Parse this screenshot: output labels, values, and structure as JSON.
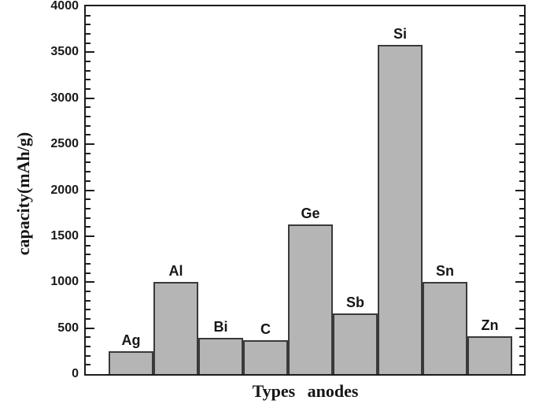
{
  "figure": {
    "background": "#ffffff",
    "bar_fill": "#b5b5b5",
    "bar_border": "#3a3a3a",
    "axis_color": "#1c1c1c",
    "text_color": "#161616"
  },
  "chart_data": {
    "type": "bar",
    "title": "",
    "xlabel": "Types anodes",
    "ylabel": "capacity(mAh/g)",
    "categories": [
      "Ag",
      "Al",
      "Bi",
      "C",
      "Ge",
      "Sb",
      "Si",
      "Sn",
      "Zn"
    ],
    "values": [
      250,
      1000,
      390,
      370,
      1625,
      660,
      3580,
      1000,
      410
    ],
    "ylim": [
      0,
      4000
    ],
    "ytick_major_interval": 500,
    "ytick_minor_interval": 100,
    "ytick_labels": [
      "0",
      "500",
      "1000",
      "1500",
      "2000",
      "2500",
      "3000",
      "3500",
      "4000"
    ],
    "grid": false,
    "legend": null,
    "bar_value_labels": "category names shown above each bar",
    "ticks": "inward, on left and right axes"
  }
}
